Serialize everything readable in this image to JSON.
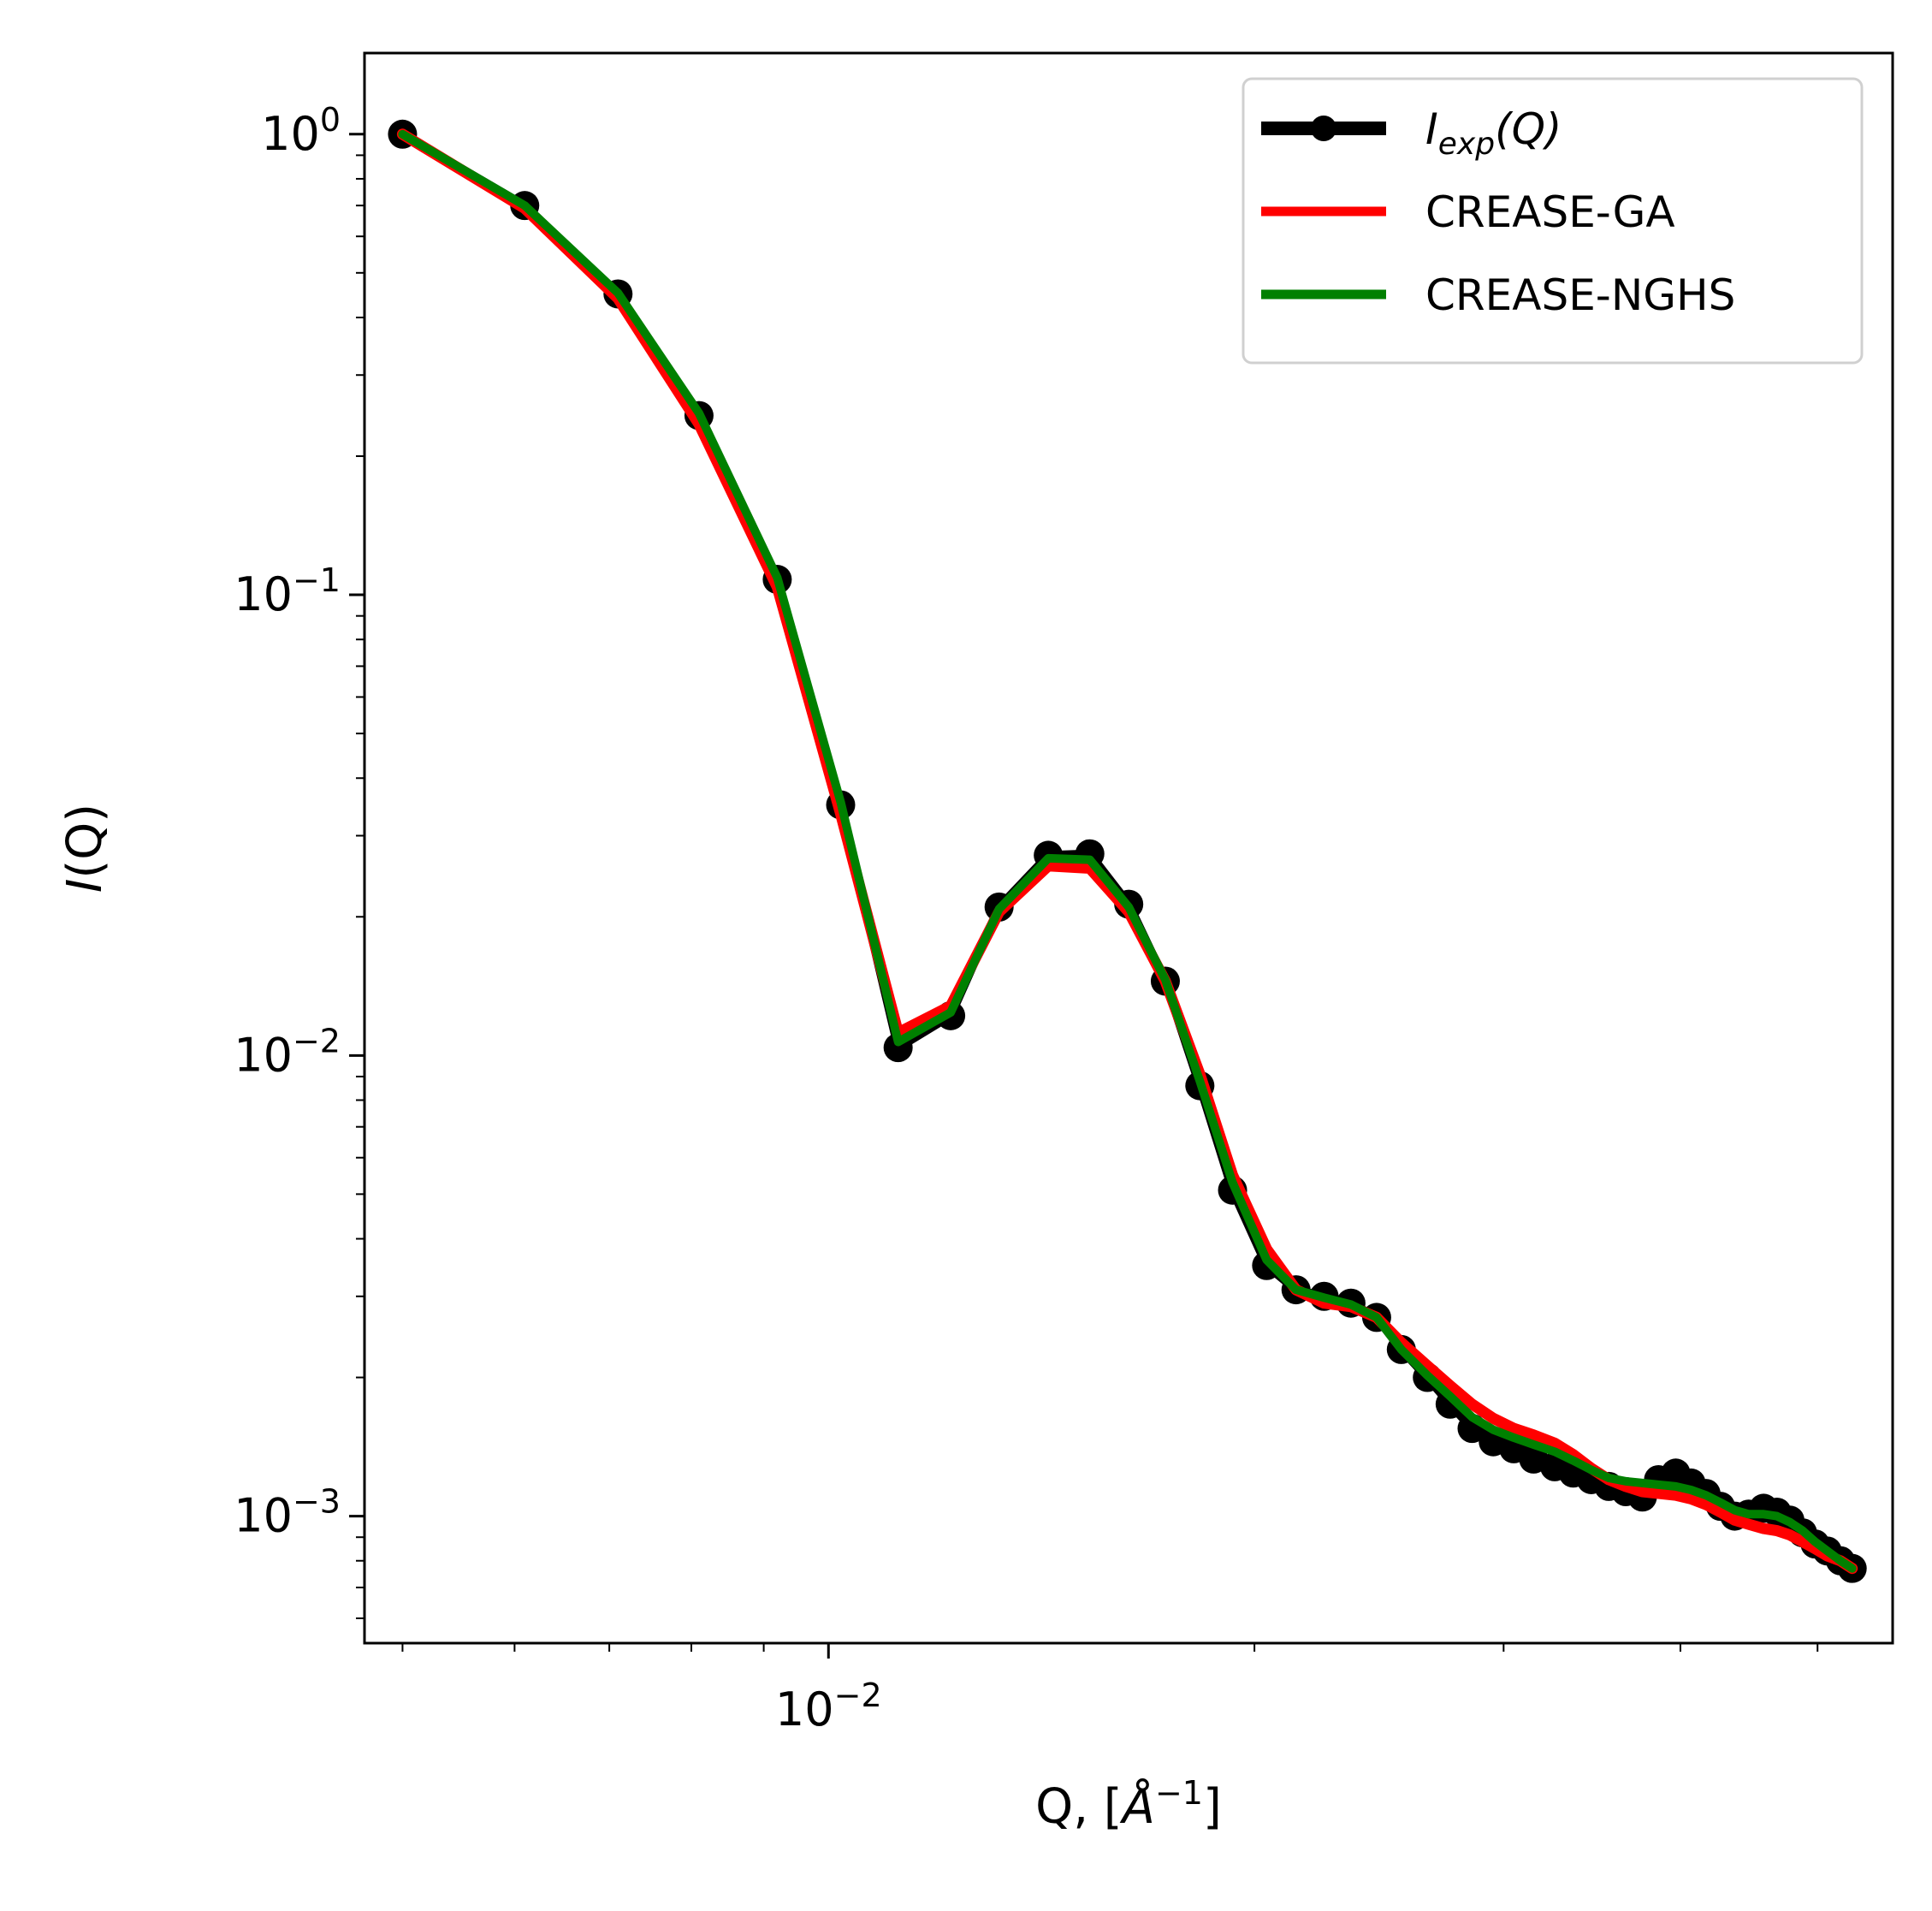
{
  "chart_data": {
    "type": "line",
    "xscale": "log",
    "yscale": "log",
    "xlim": [
      0.0047,
      0.0565
    ],
    "ylim": [
      0.00053,
      1.5
    ],
    "xlabel": "Q, [Å^-1]",
    "ylabel": "I(Q)",
    "title": "",
    "grid": false,
    "legend_position": "top-right",
    "x_ticks": [
      0.01
    ],
    "x_tick_labels": [
      "10^-2"
    ],
    "y_ticks": [
      1,
      0.1,
      0.01,
      0.001
    ],
    "y_tick_labels": [
      "10^0",
      "10^-1",
      "10^-2",
      "10^-3"
    ],
    "series": [
      {
        "name": "I_exp(Q)",
        "color": "#000000",
        "style": "line-with-markers",
        "x": [
          0.005,
          0.0061,
          0.0071,
          0.0081,
          0.0092,
          0.0102,
          0.0112,
          0.0122,
          0.0132,
          0.0143,
          0.0153,
          0.0163,
          0.0173,
          0.0183,
          0.0193,
          0.0204,
          0.0214,
          0.0224,
          0.0234,
          0.0244,
          0.0254,
          0.0265,
          0.0275,
          0.0285,
          0.0295,
          0.0305,
          0.0315,
          0.0326,
          0.0336,
          0.0346,
          0.0356,
          0.0366,
          0.0376,
          0.0386,
          0.0397,
          0.0407,
          0.0417,
          0.0427,
          0.0437,
          0.0447,
          0.0458,
          0.0468,
          0.0478,
          0.0488,
          0.0498,
          0.0508,
          0.0519,
          0.0529
        ],
        "y": [
          1.0,
          0.7,
          0.45,
          0.245,
          0.108,
          0.035,
          0.0104,
          0.0122,
          0.021,
          0.0272,
          0.0274,
          0.0213,
          0.0145,
          0.0086,
          0.0051,
          0.0035,
          0.0031,
          0.003,
          0.0029,
          0.0027,
          0.0023,
          0.002,
          0.00175,
          0.00155,
          0.00145,
          0.0014,
          0.00133,
          0.00128,
          0.00124,
          0.0012,
          0.00116,
          0.00113,
          0.0011,
          0.0012,
          0.00124,
          0.00118,
          0.00112,
          0.00105,
          0.001,
          0.00101,
          0.00104,
          0.00102,
          0.00098,
          0.00092,
          0.00087,
          0.00084,
          0.0008,
          0.00077
        ]
      },
      {
        "name": "CREASE-GA",
        "color": "#ff0000",
        "style": "line",
        "x": [
          0.005,
          0.0061,
          0.0071,
          0.0081,
          0.0092,
          0.0102,
          0.0112,
          0.0122,
          0.0132,
          0.0143,
          0.0153,
          0.0163,
          0.0173,
          0.0183,
          0.0193,
          0.0204,
          0.0214,
          0.0224,
          0.0234,
          0.0244,
          0.0254,
          0.0265,
          0.0275,
          0.0285,
          0.0295,
          0.0305,
          0.0315,
          0.0326,
          0.0336,
          0.0346,
          0.0356,
          0.0366,
          0.0376,
          0.0386,
          0.0397,
          0.0407,
          0.0417,
          0.0427,
          0.0437,
          0.0447,
          0.0458,
          0.0468,
          0.0478,
          0.0488,
          0.0498,
          0.0508,
          0.0519,
          0.0529
        ],
        "y": [
          1.0,
          0.69,
          0.44,
          0.235,
          0.104,
          0.0335,
          0.0112,
          0.0128,
          0.0205,
          0.0258,
          0.0255,
          0.0205,
          0.0145,
          0.0091,
          0.0055,
          0.0038,
          0.0031,
          0.0029,
          0.00285,
          0.0027,
          0.00238,
          0.00212,
          0.00192,
          0.00175,
          0.00163,
          0.00155,
          0.0015,
          0.00144,
          0.00136,
          0.00127,
          0.0012,
          0.00116,
          0.00113,
          0.00112,
          0.00111,
          0.00109,
          0.00106,
          0.00102,
          0.00098,
          0.00096,
          0.00094,
          0.00093,
          0.00091,
          0.00088,
          0.00085,
          0.00082,
          0.0008,
          0.00077
        ]
      },
      {
        "name": "CREASE-NGHS",
        "color": "#008000",
        "style": "line",
        "x": [
          0.005,
          0.0061,
          0.0071,
          0.0081,
          0.0092,
          0.0102,
          0.0112,
          0.0122,
          0.0132,
          0.0143,
          0.0153,
          0.0163,
          0.0173,
          0.0183,
          0.0193,
          0.0204,
          0.0214,
          0.0224,
          0.0234,
          0.0244,
          0.0254,
          0.0265,
          0.0275,
          0.0285,
          0.0295,
          0.0305,
          0.0315,
          0.0326,
          0.0336,
          0.0346,
          0.0356,
          0.0366,
          0.0376,
          0.0386,
          0.0397,
          0.0407,
          0.0417,
          0.0427,
          0.0437,
          0.0447,
          0.0458,
          0.0468,
          0.0478,
          0.0488,
          0.0498,
          0.0508,
          0.0519,
          0.0529
        ],
        "y": [
          1.0,
          0.7,
          0.452,
          0.248,
          0.109,
          0.0355,
          0.0107,
          0.0124,
          0.0208,
          0.0268,
          0.0266,
          0.021,
          0.0146,
          0.0088,
          0.0053,
          0.0036,
          0.0031,
          0.00298,
          0.00288,
          0.0027,
          0.0023,
          0.00202,
          0.00182,
          0.00164,
          0.00154,
          0.00148,
          0.00143,
          0.00138,
          0.00132,
          0.00126,
          0.00121,
          0.00119,
          0.00118,
          0.00117,
          0.00116,
          0.00114,
          0.00111,
          0.00107,
          0.00103,
          0.00101,
          0.00101,
          0.001,
          0.00097,
          0.00093,
          0.00088,
          0.00084,
          0.0008,
          0.00077
        ]
      }
    ]
  }
}
